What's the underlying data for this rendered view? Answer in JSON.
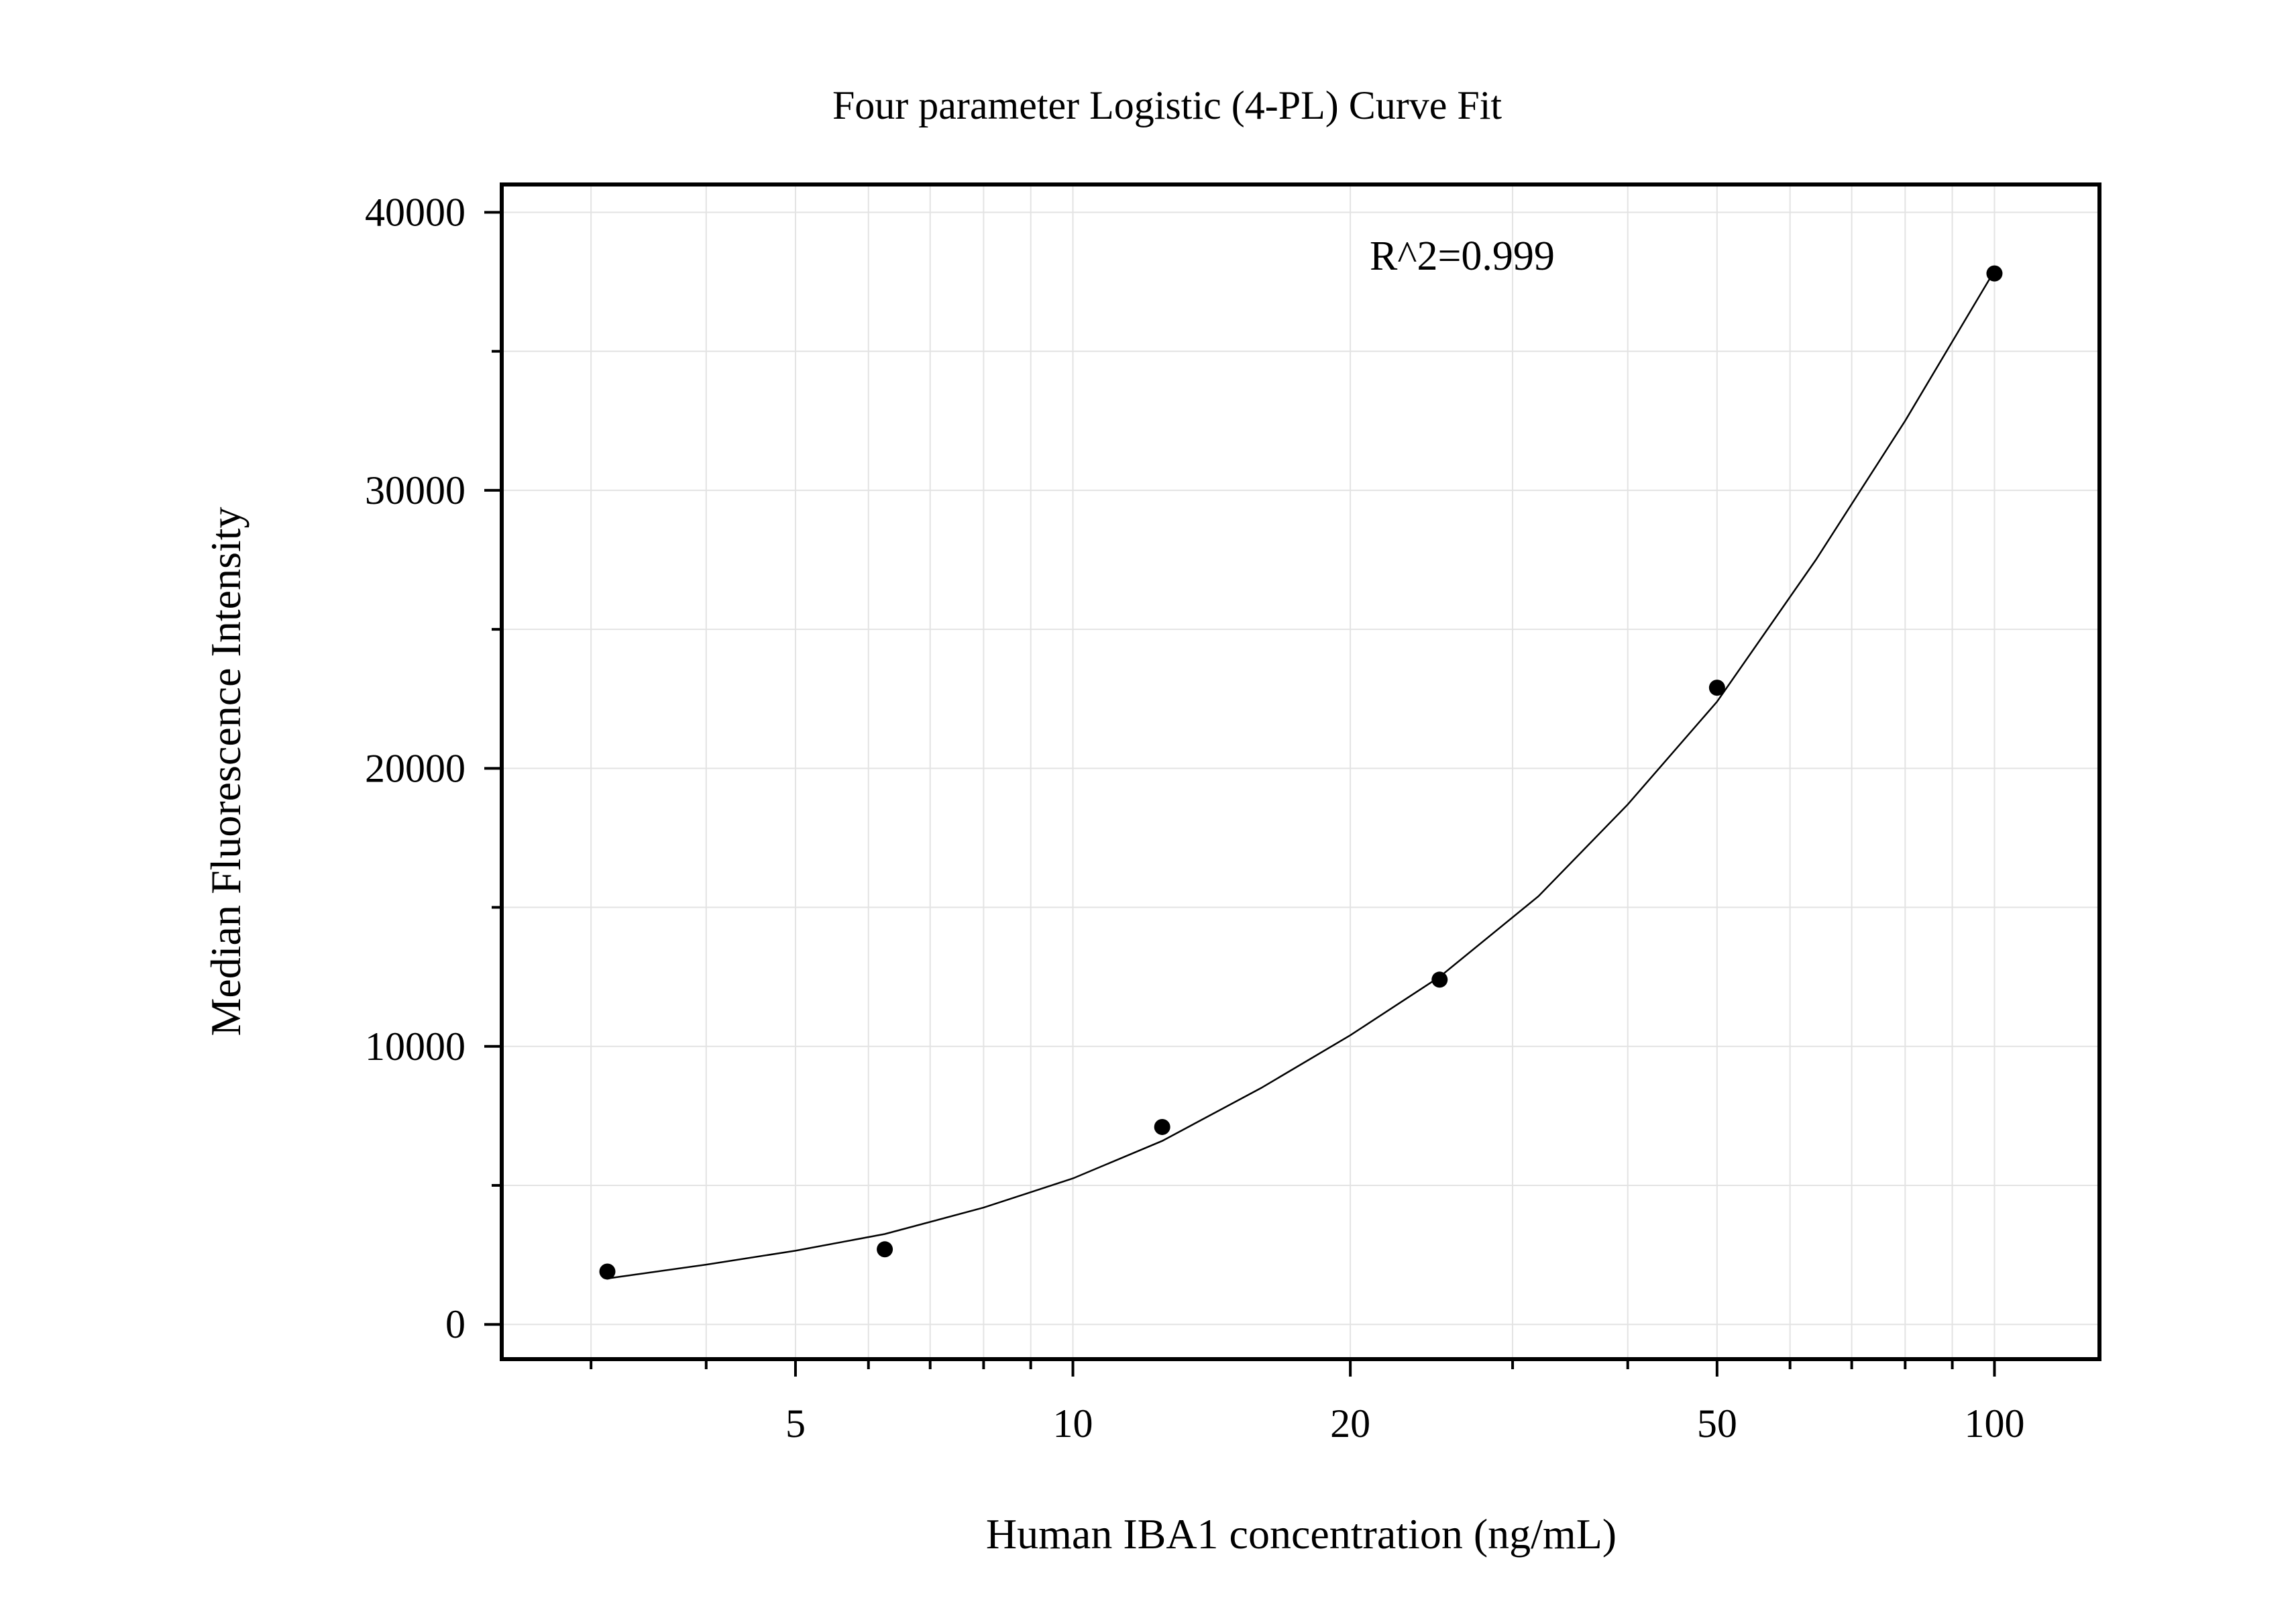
{
  "chart_data": {
    "type": "scatter",
    "title": "Four parameter Logistic (4-PL) Curve Fit",
    "xlabel": "Human IBA1 concentration (ng/mL)",
    "ylabel": "Median Fluorescence Intensity",
    "x_scale": "log",
    "xlim": [
      2.4,
      130
    ],
    "ylim": [
      -1250,
      41000
    ],
    "x_ticks": [
      5,
      10,
      20,
      50,
      100
    ],
    "x_tick_labels": [
      "5",
      "10",
      "20",
      "50",
      "100"
    ],
    "y_ticks": [
      0,
      10000,
      20000,
      30000,
      40000
    ],
    "y_tick_labels": [
      "0",
      "10000",
      "20000",
      "30000",
      "40000"
    ],
    "grid": true,
    "legend": "none",
    "annotation": "R^2=0.999",
    "series": [
      {
        "marker": "circle",
        "x": [
          3.125,
          6.25,
          12.5,
          25,
          50,
          100
        ],
        "y": [
          1900,
          2700,
          7100,
          12400,
          22900,
          37800
        ]
      }
    ],
    "fit_curve": {
      "model": "4-PL",
      "x": [
        3.125,
        4,
        5,
        6.25,
        8,
        10,
        12.5,
        16,
        20,
        25,
        32,
        40,
        50,
        64,
        80,
        100
      ],
      "y": [
        1650,
        2150,
        2650,
        3250,
        4200,
        5250,
        6600,
        8500,
        10400,
        12500,
        15400,
        18700,
        22400,
        27500,
        32500,
        37900
      ]
    },
    "colors": {
      "points": "#000000",
      "line": "#000000",
      "grid": "#e3e3e3",
      "frame": "#000000"
    }
  }
}
